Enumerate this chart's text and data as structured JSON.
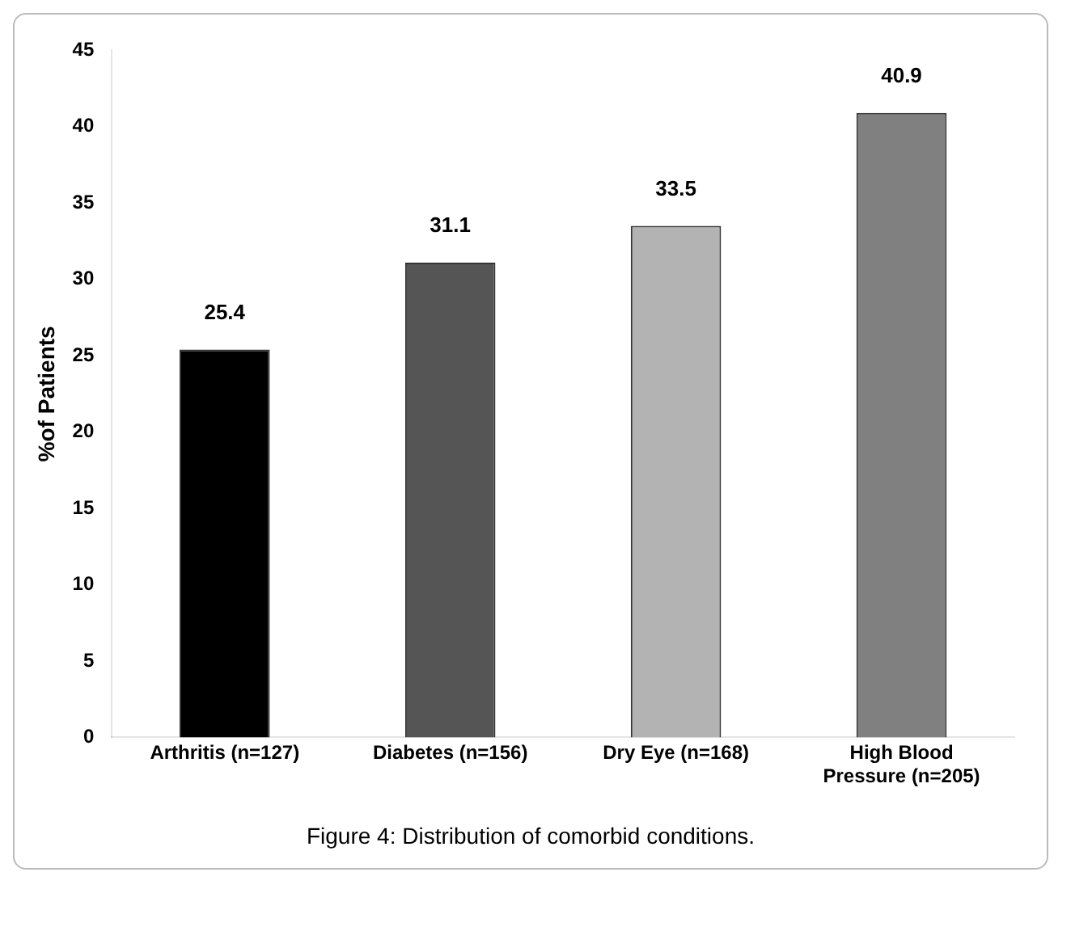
{
  "chart_data": {
    "type": "bar",
    "ylabel": "%of Patients",
    "categories": [
      "Arthritis (n=127)",
      "Diabetes (n=156)",
      "Dry Eye (n=168)",
      "High Blood Pressure (n=205)"
    ],
    "values": [
      25.4,
      31.1,
      33.5,
      40.9
    ],
    "colors": [
      "#000000",
      "#555555",
      "#b3b3b3",
      "#808080"
    ],
    "ylim": [
      0,
      45
    ],
    "yticks": [
      0,
      5,
      10,
      15,
      20,
      25,
      30,
      35,
      40,
      45
    ],
    "grid": false,
    "data_labels": true,
    "annotations": [
      "Figure 4: Distribution of comorbid conditions."
    ]
  }
}
